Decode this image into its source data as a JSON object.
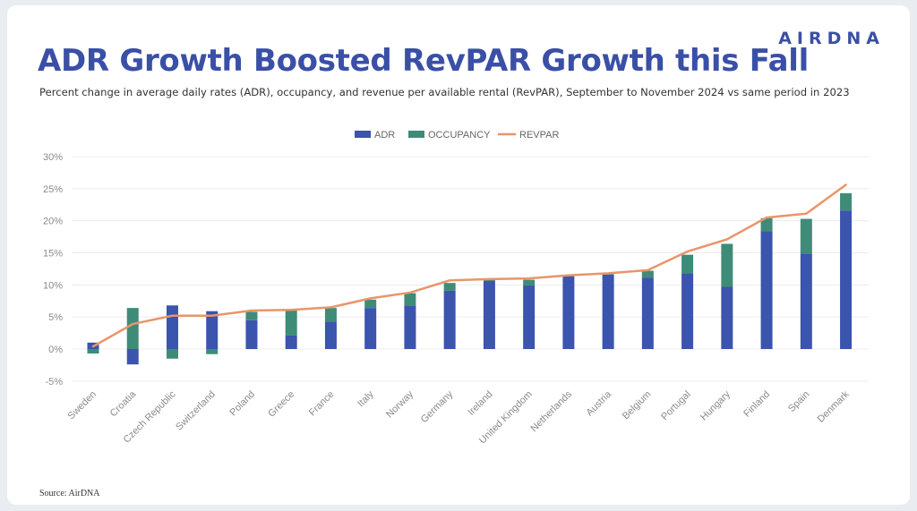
{
  "brand": {
    "logo_text": "AIRDNA"
  },
  "header": {
    "title": "ADR Growth Boosted RevPAR Growth this Fall",
    "subtitle": "Percent change in average daily rates (ADR), occupancy, and revenue per available rental (RevPAR), September to November 2024 vs same period in 2023"
  },
  "footer": {
    "source": "Source: AirDNA"
  },
  "chart_data": {
    "type": "bar",
    "stacked": true,
    "categories": [
      "Sweden",
      "Croatia",
      "Czech Republic",
      "Switzerland",
      "Poland",
      "Greece",
      "France",
      "Italy",
      "Norway",
      "Germany",
      "Ireland",
      "United Kingdom",
      "Netherlands",
      "Austria",
      "Belgium",
      "Portugal",
      "Hungary",
      "Finland",
      "Spain",
      "Denmark"
    ],
    "series": [
      {
        "name": "ADR",
        "kind": "bar",
        "color": "#3b54ad",
        "values": [
          1.0,
          -2.4,
          6.8,
          5.9,
          4.5,
          2.1,
          4.3,
          6.4,
          6.8,
          9.1,
          10.6,
          9.9,
          11.3,
          11.6,
          11.1,
          11.8,
          9.7,
          18.4,
          14.9,
          21.6
        ]
      },
      {
        "name": "OCCUPANCY",
        "kind": "bar",
        "color": "#3e8c78",
        "values": [
          -0.7,
          6.4,
          -1.5,
          -0.8,
          1.3,
          3.9,
          2.1,
          1.3,
          1.9,
          1.2,
          0.3,
          0.9,
          0.2,
          0.2,
          1.1,
          2.9,
          6.7,
          2.0,
          5.4,
          2.7
        ]
      },
      {
        "name": "REVPAR",
        "kind": "line",
        "color": "#e8956a",
        "values": [
          0.4,
          3.9,
          5.2,
          5.2,
          6.0,
          6.1,
          6.5,
          7.9,
          8.8,
          10.7,
          10.9,
          11.0,
          11.5,
          11.8,
          12.3,
          15.2,
          17.1,
          20.5,
          21.1,
          25.6
        ]
      }
    ],
    "ylim": [
      -5,
      30
    ],
    "yticks": [
      -5,
      0,
      5,
      10,
      15,
      20,
      25,
      30
    ],
    "ytick_labels": [
      "-5%",
      "0%",
      "5%",
      "10%",
      "15%",
      "20%",
      "25%",
      "30%"
    ],
    "grid": true,
    "legend_position": "top-center",
    "xlabel": "",
    "ylabel": ""
  }
}
